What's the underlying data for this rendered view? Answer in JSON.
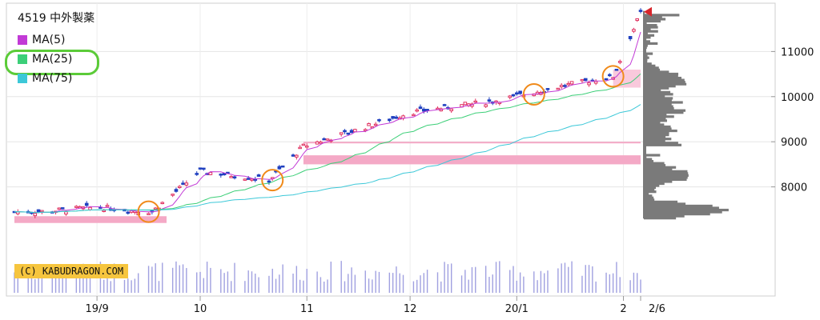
{
  "chart": {
    "ticker": "4519 中外製薬",
    "legend": [
      {
        "label": "MA(5)",
        "color": "#c23ad6"
      },
      {
        "label": "MA(25)",
        "color": "#3ccf78"
      },
      {
        "label": "MA(75)",
        "color": "#3cc8d8"
      }
    ],
    "credit": "(C) KABUDRAGON.COM",
    "y_ticks": [
      "11000",
      "10000",
      "9000",
      "8000"
    ],
    "x_ticks": [
      "19/9",
      "10",
      "11",
      "12",
      "20/1",
      "2",
      "2/6"
    ]
  },
  "chart_data": {
    "type": "candlestick",
    "ylim": [
      7000,
      12000
    ],
    "date_range": [
      "2019-08-08",
      "2020-02-06"
    ],
    "ma_lines": [
      "MA(5)",
      "MA(25)",
      "MA(75)"
    ],
    "price_levels_marked": [
      10600,
      10200,
      9000,
      8700,
      8500,
      7300
    ],
    "trend_points": [
      {
        "date": "2019-08-15",
        "close": 7450
      },
      {
        "date": "2019-09-01",
        "close": 7550
      },
      {
        "date": "2019-09-17",
        "close": 7450
      },
      {
        "date": "2019-10-01",
        "close": 8350
      },
      {
        "date": "2019-10-21",
        "close": 8150
      },
      {
        "date": "2019-10-31",
        "close": 8900
      },
      {
        "date": "2019-11-15",
        "close": 9250
      },
      {
        "date": "2019-12-01",
        "close": 9650
      },
      {
        "date": "2019-12-25",
        "close": 9900
      },
      {
        "date": "2020-01-15",
        "close": 10250
      },
      {
        "date": "2020-01-29",
        "close": 10450
      },
      {
        "date": "2020-02-06",
        "close": 11850
      }
    ]
  }
}
